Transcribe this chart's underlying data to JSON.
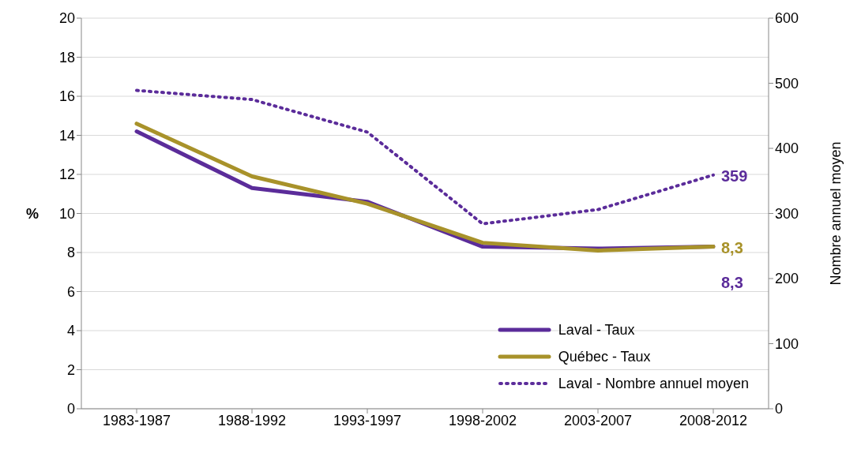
{
  "chart_data": {
    "type": "line",
    "ylabel": "%",
    "y2label": "Nombre annuel moyen",
    "categories": [
      "1983-1987",
      "1988-1992",
      "1993-1997",
      "1998-2002",
      "2003-2007",
      "2008-2012"
    ],
    "series": [
      {
        "name": "Laval - Taux",
        "color": "#5b2c9a",
        "values": [
          14.2,
          11.3,
          10.6,
          8.3,
          8.2,
          8.3
        ],
        "value_labels": [
          null,
          null,
          null,
          null,
          null,
          "8,3"
        ]
      },
      {
        "name": "Québec - Taux",
        "color": "#a8922a",
        "values": [
          14.6,
          11.9,
          10.5,
          8.5,
          8.1,
          8.3
        ],
        "value_labels": [
          null,
          null,
          null,
          null,
          null,
          "8,3"
        ]
      },
      {
        "name": "Laval - Nombre annuel moyen",
        "color": "#5b2c9a",
        "axis": "y2",
        "line_style": "dotted",
        "values": [
          489,
          475,
          425,
          284,
          306,
          359
        ],
        "value_labels": [
          null,
          null,
          null,
          null,
          null,
          "359"
        ]
      }
    ],
    "ylim": [
      0,
      20
    ],
    "yticks": [
      0,
      2,
      4,
      6,
      8,
      10,
      12,
      14,
      16,
      18,
      20
    ],
    "y2lim": [
      0,
      600
    ],
    "y2ticks": [
      0,
      100,
      200,
      300,
      400,
      500,
      600
    ],
    "grid": "y",
    "legend": "bottom right",
    "marker": "none"
  }
}
